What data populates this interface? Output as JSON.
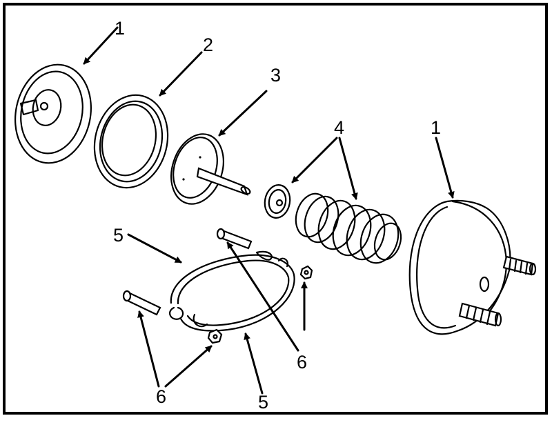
{
  "callouts": {
    "c1a": "1",
    "c2": "2",
    "c3": "3",
    "c4": "4",
    "c1b": "1",
    "c5a": "5",
    "c6a": "6",
    "c6b": "6",
    "c5b": "5"
  }
}
